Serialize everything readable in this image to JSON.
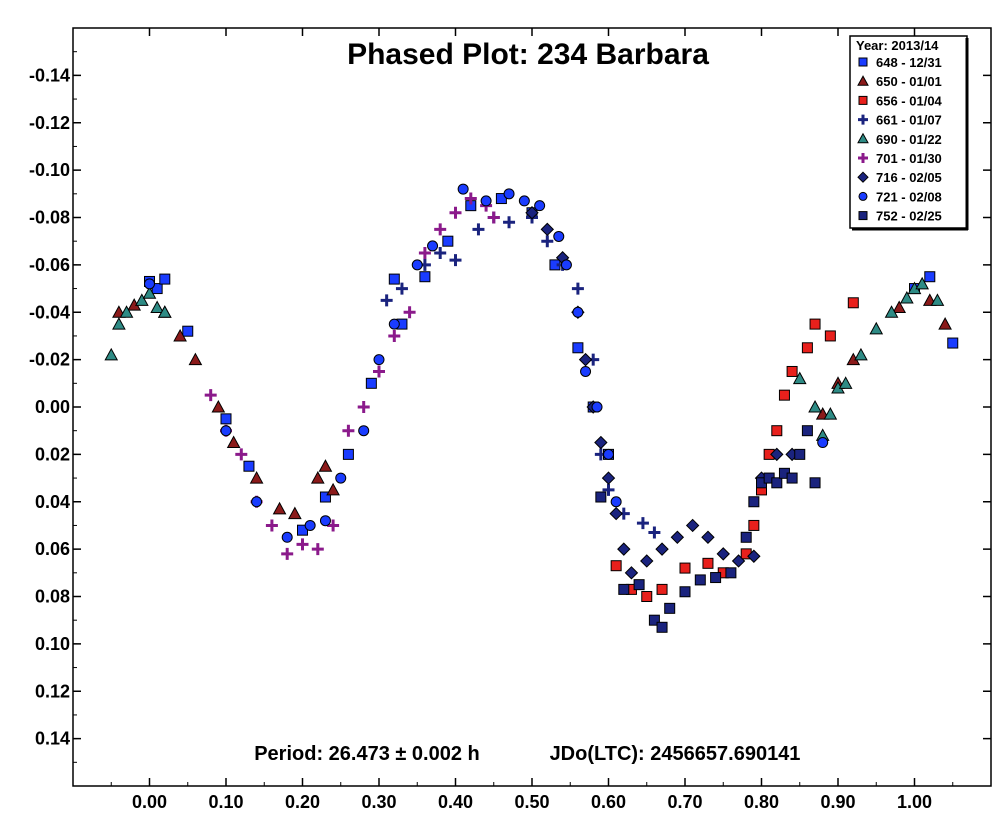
{
  "chart_data": {
    "type": "scatter",
    "title": "Phased Plot: 234 Barbara",
    "annotations": [
      "Period: 26.473 ± 0.002 h",
      "JDo(LTC): 2456657.690141"
    ],
    "xlim": [
      -0.1,
      1.1
    ],
    "ylim": [
      0.16,
      -0.16
    ],
    "y_inverted": true,
    "x_ticks": [
      0.0,
      0.1,
      0.2,
      0.3,
      0.4,
      0.5,
      0.6,
      0.7,
      0.8,
      0.9,
      1.0
    ],
    "x_tick_labels": [
      "0.00",
      "0.10",
      "0.20",
      "0.30",
      "0.40",
      "0.50",
      "0.60",
      "0.70",
      "0.80",
      "0.90",
      "1.00"
    ],
    "y_ticks": [
      -0.14,
      -0.12,
      -0.1,
      -0.08,
      -0.06,
      -0.04,
      -0.02,
      0.0,
      0.02,
      0.04,
      0.06,
      0.08,
      0.1,
      0.12,
      0.14
    ],
    "y_tick_labels": [
      "-0.14",
      "-0.12",
      "-0.10",
      "-0.08",
      "-0.06",
      "-0.04",
      "-0.02",
      "0.00",
      "0.02",
      "0.04",
      "0.06",
      "0.08",
      "0.10",
      "0.12",
      "0.14"
    ],
    "grid": false,
    "legend": {
      "title": "Year: 2013/14",
      "position": "top-right",
      "entries": [
        {
          "label": "648 - 12/31",
          "marker": "square",
          "color": "#1a3cff"
        },
        {
          "label": "650 - 01/01",
          "marker": "triangle",
          "color": "#8b1a1a"
        },
        {
          "label": "656 - 01/04",
          "marker": "square",
          "color": "#e8201c"
        },
        {
          "label": "661 - 01/07",
          "marker": "plus",
          "color": "#1a237e"
        },
        {
          "label": "690 - 01/22",
          "marker": "triangle",
          "color": "#2e8b85"
        },
        {
          "label": "701 - 01/30",
          "marker": "plus",
          "color": "#8b1a8b"
        },
        {
          "label": "716 - 02/05",
          "marker": "diamond",
          "color": "#1a237e"
        },
        {
          "label": "721 - 02/08",
          "marker": "circle",
          "color": "#1a3cff"
        },
        {
          "label": "752 - 02/25",
          "marker": "square",
          "color": "#1a237e"
        }
      ]
    },
    "series": [
      {
        "name": "648 - 12/31",
        "points": [
          [
            0.0,
            -0.053
          ],
          [
            0.01,
            -0.05
          ],
          [
            0.02,
            -0.054
          ],
          [
            0.05,
            -0.032
          ],
          [
            0.1,
            0.005
          ],
          [
            0.13,
            0.025
          ],
          [
            0.2,
            0.052
          ],
          [
            0.23,
            0.038
          ],
          [
            0.26,
            0.02
          ],
          [
            0.29,
            -0.01
          ],
          [
            0.32,
            -0.054
          ],
          [
            0.33,
            -0.035
          ],
          [
            0.36,
            -0.055
          ],
          [
            0.39,
            -0.07
          ],
          [
            0.42,
            -0.085
          ],
          [
            0.46,
            -0.088
          ],
          [
            0.5,
            -0.082
          ],
          [
            0.53,
            -0.06
          ],
          [
            0.56,
            -0.025
          ],
          [
            0.58,
            0.0
          ],
          [
            0.6,
            0.02
          ],
          [
            1.0,
            -0.05
          ],
          [
            1.02,
            -0.055
          ],
          [
            1.05,
            -0.027
          ]
        ]
      },
      {
        "name": "650 - 01/01",
        "points": [
          [
            -0.04,
            -0.04
          ],
          [
            -0.02,
            -0.043
          ],
          [
            0.02,
            -0.04
          ],
          [
            0.04,
            -0.03
          ],
          [
            0.06,
            -0.02
          ],
          [
            0.09,
            0.0
          ],
          [
            0.11,
            0.015
          ],
          [
            0.14,
            0.03
          ],
          [
            0.17,
            0.043
          ],
          [
            0.19,
            0.045
          ],
          [
            0.22,
            0.03
          ],
          [
            0.23,
            0.025
          ],
          [
            0.24,
            0.035
          ],
          [
            0.88,
            0.003
          ],
          [
            0.9,
            -0.01
          ],
          [
            0.92,
            -0.02
          ],
          [
            0.98,
            -0.042
          ],
          [
            1.02,
            -0.045
          ],
          [
            1.04,
            -0.035
          ]
        ]
      },
      {
        "name": "656 - 01/04",
        "points": [
          [
            0.61,
            0.067
          ],
          [
            0.63,
            0.077
          ],
          [
            0.65,
            0.08
          ],
          [
            0.67,
            0.077
          ],
          [
            0.7,
            0.068
          ],
          [
            0.73,
            0.066
          ],
          [
            0.75,
            0.07
          ],
          [
            0.78,
            0.062
          ],
          [
            0.79,
            0.05
          ],
          [
            0.8,
            0.035
          ],
          [
            0.81,
            0.02
          ],
          [
            0.82,
            0.01
          ],
          [
            0.83,
            -0.005
          ],
          [
            0.84,
            -0.015
          ],
          [
            0.86,
            -0.025
          ],
          [
            0.87,
            -0.035
          ],
          [
            0.89,
            -0.03
          ],
          [
            0.92,
            -0.044
          ]
        ]
      },
      {
        "name": "661 - 01/07",
        "points": [
          [
            0.31,
            -0.045
          ],
          [
            0.33,
            -0.05
          ],
          [
            0.36,
            -0.06
          ],
          [
            0.38,
            -0.065
          ],
          [
            0.4,
            -0.062
          ],
          [
            0.43,
            -0.075
          ],
          [
            0.45,
            -0.08
          ],
          [
            0.47,
            -0.078
          ],
          [
            0.5,
            -0.08
          ],
          [
            0.52,
            -0.07
          ],
          [
            0.54,
            -0.06
          ],
          [
            0.56,
            -0.05
          ],
          [
            0.58,
            -0.02
          ],
          [
            0.59,
            0.02
          ],
          [
            0.6,
            0.035
          ],
          [
            0.62,
            0.045
          ],
          [
            0.645,
            0.049
          ],
          [
            0.66,
            0.053
          ]
        ]
      },
      {
        "name": "690 - 01/22",
        "points": [
          [
            -0.05,
            -0.022
          ],
          [
            -0.04,
            -0.035
          ],
          [
            -0.03,
            -0.04
          ],
          [
            -0.01,
            -0.045
          ],
          [
            0.0,
            -0.048
          ],
          [
            0.01,
            -0.042
          ],
          [
            0.02,
            -0.04
          ],
          [
            0.85,
            -0.012
          ],
          [
            0.87,
            0.0
          ],
          [
            0.88,
            0.012
          ],
          [
            0.89,
            0.003
          ],
          [
            0.9,
            -0.008
          ],
          [
            0.91,
            -0.01
          ],
          [
            0.93,
            -0.022
          ],
          [
            0.95,
            -0.033
          ],
          [
            0.97,
            -0.04
          ],
          [
            0.99,
            -0.046
          ],
          [
            1.0,
            -0.05
          ],
          [
            1.01,
            -0.052
          ],
          [
            1.03,
            -0.045
          ]
        ]
      },
      {
        "name": "701 - 01/30",
        "points": [
          [
            0.08,
            -0.005
          ],
          [
            0.1,
            0.01
          ],
          [
            0.12,
            0.02
          ],
          [
            0.14,
            0.04
          ],
          [
            0.16,
            0.05
          ],
          [
            0.18,
            0.062
          ],
          [
            0.2,
            0.058
          ],
          [
            0.22,
            0.06
          ],
          [
            0.24,
            0.05
          ],
          [
            0.26,
            0.01
          ],
          [
            0.28,
            0.0
          ],
          [
            0.3,
            -0.015
          ],
          [
            0.32,
            -0.03
          ],
          [
            0.34,
            -0.04
          ],
          [
            0.36,
            -0.065
          ],
          [
            0.38,
            -0.075
          ],
          [
            0.4,
            -0.082
          ],
          [
            0.42,
            -0.088
          ],
          [
            0.44,
            -0.085
          ],
          [
            0.45,
            -0.08
          ]
        ]
      },
      {
        "name": "716 - 02/05",
        "points": [
          [
            0.5,
            -0.082
          ],
          [
            0.52,
            -0.075
          ],
          [
            0.54,
            -0.063
          ],
          [
            0.56,
            -0.04
          ],
          [
            0.57,
            -0.02
          ],
          [
            0.58,
            0.0
          ],
          [
            0.59,
            0.015
          ],
          [
            0.6,
            0.03
          ],
          [
            0.61,
            0.045
          ],
          [
            0.62,
            0.06
          ],
          [
            0.63,
            0.07
          ],
          [
            0.65,
            0.065
          ],
          [
            0.67,
            0.06
          ],
          [
            0.69,
            0.055
          ],
          [
            0.71,
            0.05
          ],
          [
            0.73,
            0.055
          ],
          [
            0.75,
            0.062
          ],
          [
            0.77,
            0.065
          ],
          [
            0.79,
            0.063
          ],
          [
            0.8,
            0.03
          ],
          [
            0.82,
            0.02
          ],
          [
            0.84,
            0.02
          ]
        ]
      },
      {
        "name": "721 - 02/08",
        "points": [
          [
            0.0,
            -0.052
          ],
          [
            0.1,
            0.01
          ],
          [
            0.14,
            0.04
          ],
          [
            0.18,
            0.055
          ],
          [
            0.21,
            0.05
          ],
          [
            0.23,
            0.048
          ],
          [
            0.25,
            0.03
          ],
          [
            0.28,
            0.01
          ],
          [
            0.3,
            -0.02
          ],
          [
            0.32,
            -0.035
          ],
          [
            0.35,
            -0.06
          ],
          [
            0.37,
            -0.068
          ],
          [
            0.41,
            -0.092
          ],
          [
            0.44,
            -0.087
          ],
          [
            0.47,
            -0.09
          ],
          [
            0.49,
            -0.087
          ],
          [
            0.51,
            -0.085
          ],
          [
            0.535,
            -0.072
          ],
          [
            0.545,
            -0.06
          ],
          [
            0.56,
            -0.04
          ],
          [
            0.57,
            -0.015
          ],
          [
            0.585,
            0.0
          ],
          [
            0.6,
            0.02
          ],
          [
            0.61,
            0.04
          ],
          [
            0.88,
            0.015
          ]
        ]
      },
      {
        "name": "752 - 02/25",
        "points": [
          [
            0.59,
            0.038
          ],
          [
            0.62,
            0.077
          ],
          [
            0.64,
            0.075
          ],
          [
            0.66,
            0.09
          ],
          [
            0.67,
            0.093
          ],
          [
            0.68,
            0.085
          ],
          [
            0.7,
            0.078
          ],
          [
            0.72,
            0.073
          ],
          [
            0.74,
            0.072
          ],
          [
            0.76,
            0.07
          ],
          [
            0.78,
            0.055
          ],
          [
            0.79,
            0.04
          ],
          [
            0.8,
            0.032
          ],
          [
            0.81,
            0.03
          ],
          [
            0.82,
            0.032
          ],
          [
            0.83,
            0.028
          ],
          [
            0.84,
            0.03
          ],
          [
            0.85,
            0.02
          ],
          [
            0.86,
            0.01
          ],
          [
            0.87,
            0.032
          ]
        ]
      }
    ]
  }
}
